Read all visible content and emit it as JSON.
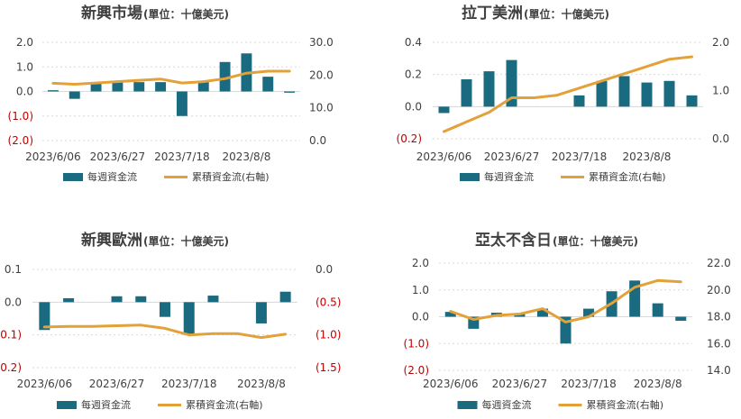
{
  "colors": {
    "bar": "#1a6b80",
    "line": "#e3a13a",
    "negative_tick": "#c00000",
    "text": "#404040"
  },
  "chart_data": [
    {
      "type": "bar",
      "title": "新興市場",
      "unit": "(單位：十億美元)",
      "x_labels": [
        "2023/6/06",
        "2023/6/27",
        "2023/7/18",
        "2023/8/8"
      ],
      "series": [
        {
          "name": "每週資金流",
          "type": "bar",
          "axis": "left",
          "values": [
            0.05,
            -0.3,
            0.35,
            0.4,
            0.38,
            0.38,
            -1.0,
            0.38,
            1.2,
            1.55,
            0.6,
            -0.05
          ]
        },
        {
          "name": "累積資金流(右軸)",
          "type": "line",
          "axis": "right",
          "values": [
            17.5,
            17.2,
            17.6,
            18.0,
            18.4,
            18.8,
            17.6,
            18.0,
            18.9,
            20.6,
            21.2,
            21.2
          ]
        }
      ],
      "left_axis": {
        "ylim": [
          -2.0,
          2.0
        ],
        "ticks": [
          2.0,
          1.0,
          0.0,
          -1.0,
          -2.0
        ],
        "tick_labels": [
          "2.0",
          "1.0",
          "0.0",
          "(1.0)",
          "(2.0)"
        ]
      },
      "right_axis": {
        "ylim": [
          0,
          30
        ],
        "ticks": [
          30,
          20,
          10,
          0
        ],
        "tick_labels": [
          "30.0",
          "20.0",
          "10.0",
          "0.0"
        ]
      },
      "legend": [
        "每週資金流",
        "累積資金流(右軸)"
      ]
    },
    {
      "type": "bar",
      "title": "拉丁美洲",
      "unit": "(單位：十億美元)",
      "x_labels": [
        "2023/6/06",
        "2023/6/27",
        "2023/7/18",
        "2023/8/8"
      ],
      "series": [
        {
          "name": "每週資金流",
          "type": "bar",
          "axis": "left",
          "values": [
            -0.04,
            0.17,
            0.22,
            0.29,
            0.0,
            0.0,
            0.07,
            0.16,
            0.19,
            0.15,
            0.16,
            0.07
          ]
        },
        {
          "name": "累積資金流(右軸)",
          "type": "line",
          "axis": "right",
          "values": [
            0.15,
            0.35,
            0.55,
            0.85,
            0.85,
            0.9,
            1.05,
            1.2,
            1.35,
            1.5,
            1.65,
            1.7
          ]
        }
      ],
      "left_axis": {
        "ylim": [
          -0.2,
          0.4
        ],
        "ticks": [
          0.4,
          0.2,
          0.0,
          -0.2
        ],
        "tick_labels": [
          "0.4",
          "0.2",
          "0.0",
          "(0.2)"
        ]
      },
      "right_axis": {
        "ylim": [
          0,
          2.0
        ],
        "ticks": [
          2.0,
          1.0,
          0.0
        ],
        "tick_labels": [
          "2.0",
          "1.0",
          "0.0"
        ]
      },
      "legend": [
        "每週資金流",
        "累積資金流(右軸)"
      ]
    },
    {
      "type": "bar",
      "title": "新興歐洲",
      "unit": "(單位：十億美元)",
      "x_labels": [
        "2023/6/06",
        "2023/6/27",
        "2023/7/18",
        "2023/8/8"
      ],
      "series": [
        {
          "name": "每週資金流",
          "type": "bar",
          "axis": "left",
          "values": [
            -0.085,
            0.012,
            0.0,
            0.018,
            0.018,
            -0.045,
            -0.1,
            0.02,
            0.0,
            -0.065,
            0.032
          ]
        },
        {
          "name": "累積資金流(右軸)",
          "type": "line",
          "axis": "right",
          "values": [
            -0.88,
            -0.87,
            -0.87,
            -0.86,
            -0.85,
            -0.9,
            -1.0,
            -0.98,
            -0.98,
            -1.04,
            -0.99
          ]
        }
      ],
      "left_axis": {
        "ylim": [
          -0.2,
          0.1
        ],
        "ticks": [
          0.1,
          0.0,
          -0.1,
          -0.2
        ],
        "tick_labels": [
          "0.1",
          "0.0",
          "(0.1)",
          "(0.2)"
        ]
      },
      "right_axis": {
        "ylim": [
          -1.5,
          0.0
        ],
        "ticks": [
          0.0,
          -0.5,
          -1.0,
          -1.5
        ],
        "tick_labels": [
          "0.0",
          "(0.5)",
          "(1.0)",
          "(1.5)"
        ]
      },
      "legend": [
        "每週資金流",
        "累積資金流(右軸)"
      ]
    },
    {
      "type": "bar",
      "title": "亞太不含日",
      "unit": "(單位：十億美元)",
      "x_labels": [
        "2023/6/06",
        "2023/6/27",
        "2023/7/18",
        "2023/8/8"
      ],
      "series": [
        {
          "name": "每週資金流",
          "type": "bar",
          "axis": "left",
          "values": [
            0.18,
            -0.45,
            0.15,
            0.12,
            0.3,
            -1.0,
            0.3,
            0.95,
            1.35,
            0.5,
            -0.15
          ]
        },
        {
          "name": "累積資金流(右軸)",
          "type": "line",
          "axis": "right",
          "values": [
            18.4,
            17.8,
            18.1,
            18.2,
            18.6,
            17.6,
            18.0,
            19.0,
            20.2,
            20.7,
            20.6
          ]
        }
      ],
      "left_axis": {
        "ylim": [
          -2.0,
          2.0
        ],
        "ticks": [
          2.0,
          1.0,
          0.0,
          -1.0,
          -2.0
        ],
        "tick_labels": [
          "2.0",
          "1.0",
          "0.0",
          "(1.0)",
          "(2.0)"
        ]
      },
      "right_axis": {
        "ylim": [
          14,
          22
        ],
        "ticks": [
          22,
          20,
          18,
          16,
          14
        ],
        "tick_labels": [
          "22.0",
          "20.0",
          "18.0",
          "16.0",
          "14.0"
        ]
      },
      "legend": [
        "每週資金流",
        "累積資金流(右軸)"
      ]
    }
  ]
}
